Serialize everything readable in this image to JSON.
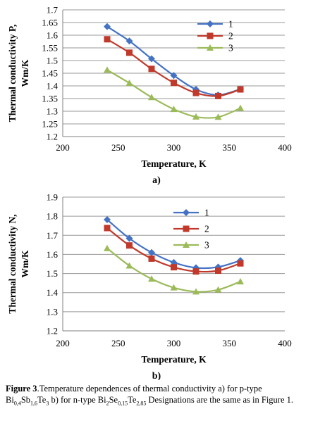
{
  "chart_data": [
    {
      "type": "line",
      "panel_label": "a)",
      "xlabel": "Temperature, K",
      "ylabel": "Thermal conductivity P, Wm/K",
      "xlim": [
        200,
        400
      ],
      "ylim": [
        1.2,
        1.7
      ],
      "xticks": [
        200,
        250,
        300,
        350,
        400
      ],
      "yticks": [
        1.2,
        1.25,
        1.3,
        1.35,
        1.4,
        1.45,
        1.5,
        1.55,
        1.6,
        1.65,
        1.7
      ],
      "ytick_labels": [
        "1.2",
        "1.25",
        "1.3",
        "1.35",
        "1.4",
        "1.45",
        "1.5",
        "1.55",
        "1.6",
        "1.65",
        "1.7"
      ],
      "grid": "horizontal",
      "legend": "top-right",
      "x": [
        240,
        260,
        280,
        300,
        320,
        340,
        360
      ],
      "series": [
        {
          "name": "1",
          "values": [
            1.634,
            1.577,
            1.507,
            1.441,
            1.386,
            1.364,
            1.387
          ],
          "color": "#4472C4",
          "marker": "diamond"
        },
        {
          "name": "2",
          "values": [
            1.584,
            1.531,
            1.467,
            1.412,
            1.372,
            1.36,
            1.386
          ],
          "color": "#C0392B",
          "marker": "square"
        },
        {
          "name": "3",
          "values": [
            1.463,
            1.411,
            1.355,
            1.308,
            1.278,
            1.277,
            1.312
          ],
          "color": "#9BBB59",
          "marker": "triangle"
        }
      ]
    },
    {
      "type": "line",
      "panel_label": "b)",
      "xlabel": "Temperature, K",
      "ylabel": "Thermal conductivity N, Wm/K",
      "xlim": [
        200,
        400
      ],
      "ylim": [
        1.2,
        1.9
      ],
      "xticks": [
        200,
        250,
        300,
        350,
        400
      ],
      "yticks": [
        1.2,
        1.3,
        1.4,
        1.5,
        1.6,
        1.7,
        1.8,
        1.9
      ],
      "ytick_labels": [
        "1.2",
        "1.3",
        "1.4",
        "1.5",
        "1.6",
        "1.7",
        "1.8",
        "1.9"
      ],
      "grid": "horizontal",
      "legend": "top-right",
      "x": [
        240,
        260,
        280,
        300,
        320,
        340,
        360
      ],
      "series": [
        {
          "name": "1",
          "values": [
            1.782,
            1.684,
            1.61,
            1.558,
            1.53,
            1.534,
            1.568
          ],
          "color": "#4472C4",
          "marker": "diamond"
        },
        {
          "name": "2",
          "values": [
            1.738,
            1.647,
            1.578,
            1.533,
            1.511,
            1.515,
            1.553
          ],
          "color": "#C0392B",
          "marker": "square"
        },
        {
          "name": "3",
          "values": [
            1.632,
            1.541,
            1.472,
            1.426,
            1.405,
            1.415,
            1.458
          ],
          "color": "#9BBB59",
          "marker": "triangle"
        }
      ]
    }
  ],
  "caption": {
    "figure_label": "Figure 3",
    "text_1": ".Temperature dependences of thermal conductivity a) for p-type Bi",
    "sub_1": "0,4",
    "text_2": "Sb",
    "sub_2": "1,6",
    "text_3": "Te",
    "sub_3": "3",
    "text_4": " b) for n-type Bi",
    "sub_4": "2",
    "text_5": "Se",
    "sub_5": "0,15",
    "text_6": "Te",
    "sub_6": "2,85",
    "text_7": " Designations are the same as in Figure 1."
  }
}
